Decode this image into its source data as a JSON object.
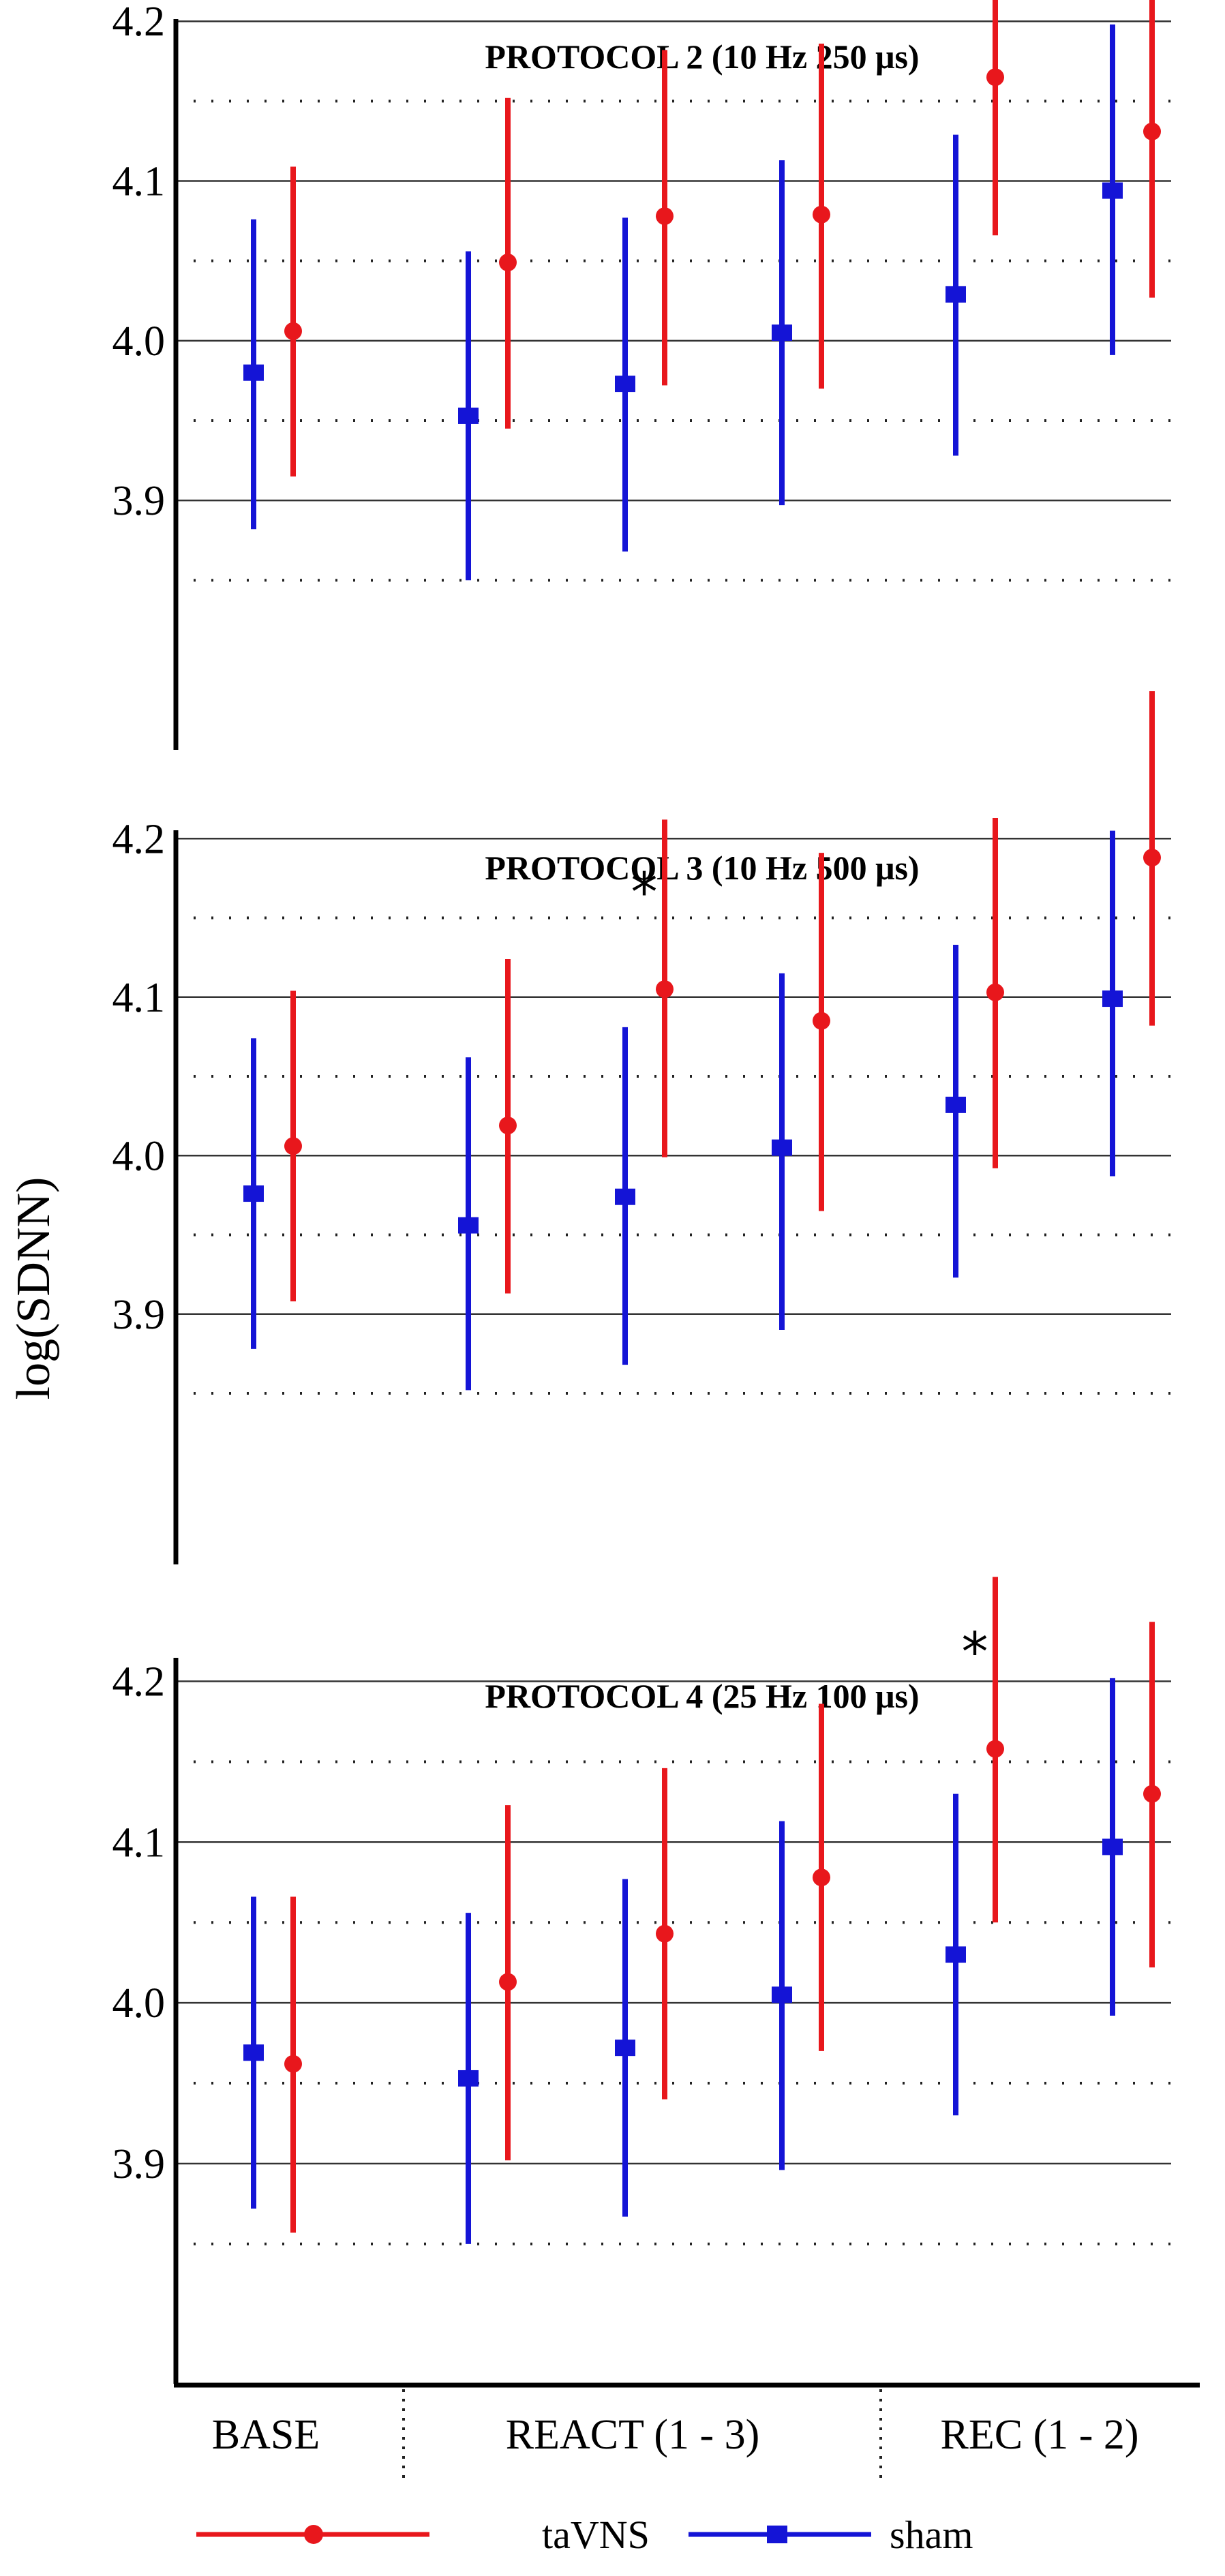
{
  "ylabel": "log(SDNN)",
  "categories": [
    "BASE",
    "REACT (1 - 3)",
    "REC (1 - 2)"
  ],
  "legend": [
    {
      "name": "taVNS",
      "color": "#e8171c",
      "marker": "circle"
    },
    {
      "name": "sham",
      "color": "#1414d6",
      "marker": "square"
    }
  ],
  "chart_data": [
    {
      "type": "scatter",
      "title": "PROTOCOL 2 (10 Hz 250 μs)",
      "ylim": [
        3.81,
        4.27
      ],
      "yticks": [
        3.9,
        4.0,
        4.1,
        4.2
      ],
      "grid": "solid at ticks, dotted at half steps",
      "x": [
        1,
        2,
        3,
        4,
        5,
        6
      ],
      "series": [
        {
          "name": "sham",
          "values": [
            3.98,
            3.953,
            3.973,
            4.005,
            4.029,
            4.094
          ],
          "lower": [
            3.882,
            3.85,
            3.868,
            3.897,
            3.928,
            3.991
          ],
          "upper": [
            4.076,
            4.056,
            4.077,
            4.113,
            4.129,
            4.198
          ]
        },
        {
          "name": "taVNS",
          "values": [
            4.006,
            4.049,
            4.078,
            4.079,
            4.165,
            4.131
          ],
          "lower": [
            3.915,
            3.945,
            3.972,
            3.97,
            4.066,
            4.027
          ],
          "upper": [
            4.109,
            4.152,
            4.182,
            4.186,
            4.264,
            4.233
          ]
        }
      ],
      "annotations": [
        {
          "text": "*",
          "x": 5
        }
      ]
    },
    {
      "type": "scatter",
      "title": "PROTOCOL 3 (10 Hz 500 μs)",
      "ylim": [
        3.81,
        4.29
      ],
      "yticks": [
        3.9,
        4.0,
        4.1,
        4.2
      ],
      "grid": "solid at ticks, dotted at half steps",
      "x": [
        1,
        2,
        3,
        4,
        5,
        6
      ],
      "series": [
        {
          "name": "sham",
          "values": [
            3.976,
            3.956,
            3.974,
            4.005,
            4.032,
            4.099
          ],
          "lower": [
            3.878,
            3.852,
            3.868,
            3.89,
            3.923,
            3.987
          ],
          "upper": [
            4.074,
            4.062,
            4.081,
            4.115,
            4.133,
            4.205
          ]
        },
        {
          "name": "taVNS",
          "values": [
            4.006,
            4.019,
            4.105,
            4.085,
            4.103,
            4.188
          ],
          "lower": [
            3.908,
            3.913,
            3.999,
            3.965,
            3.992,
            4.082
          ],
          "upper": [
            4.104,
            4.124,
            4.212,
            4.191,
            4.213,
            4.293
          ]
        }
      ],
      "annotations": [
        {
          "text": "*",
          "x": 3
        }
      ]
    },
    {
      "type": "scatter",
      "title": "PROTOCOL 4 (25 Hz 100 μs)",
      "ylim": [
        3.83,
        4.28
      ],
      "yticks": [
        3.9,
        4.0,
        4.1,
        4.2
      ],
      "grid": "solid at ticks, dotted at half steps",
      "x": [
        1,
        2,
        3,
        4,
        5,
        6
      ],
      "series": [
        {
          "name": "sham",
          "values": [
            3.969,
            3.953,
            3.972,
            4.005,
            4.03,
            4.097
          ],
          "lower": [
            3.872,
            3.85,
            3.867,
            3.896,
            3.93,
            3.992
          ],
          "upper": [
            4.066,
            4.056,
            4.077,
            4.113,
            4.13,
            4.202
          ]
        },
        {
          "name": "taVNS",
          "values": [
            3.962,
            4.013,
            4.043,
            4.078,
            4.158,
            4.13
          ],
          "lower": [
            3.857,
            3.902,
            3.94,
            3.97,
            4.05,
            4.022
          ],
          "upper": [
            4.066,
            4.123,
            4.146,
            4.186,
            4.265,
            4.237
          ]
        }
      ],
      "annotations": [
        {
          "text": "*",
          "x": 5
        }
      ]
    }
  ]
}
